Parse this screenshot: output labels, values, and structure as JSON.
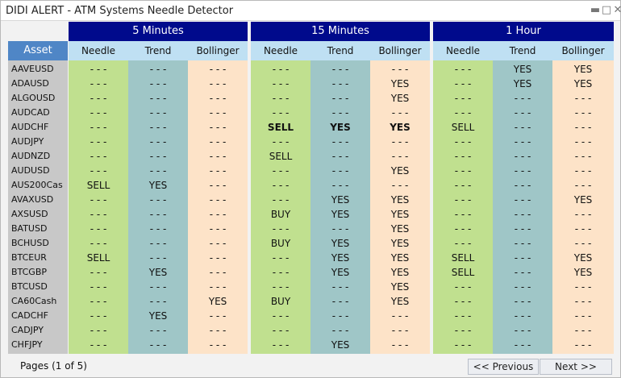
{
  "window": {
    "title": "DIDI ALERT - ATM Systems Needle Detector"
  },
  "groups": [
    "5 Minutes",
    "15 Minutes",
    "1 Hour"
  ],
  "subheaders": {
    "asset": "Asset",
    "needle": "Needle",
    "trend": "Trend",
    "bollinger": "Bollinger"
  },
  "colors": {
    "group_header": "#000a8c",
    "asset_header": "#4f86c6",
    "sub_header": "#bfe0f3",
    "needle": "#c0e08f",
    "trend": "#9fc6c7",
    "bollinger": "#fde3c8",
    "asset_col": "#c8c8c8"
  },
  "assets": [
    "AAVEUSD",
    "ADAUSD",
    "ALGOUSD",
    "AUDCAD",
    "AUDCHF",
    "AUDJPY",
    "AUDNZD",
    "AUDUSD",
    "AUS200Cas",
    "AVAXUSD",
    "AXSUSD",
    "BATUSD",
    "BCHUSD",
    "BTCEUR",
    "BTCGBP",
    "BTCUSD",
    "CA60Cash",
    "CADCHF",
    "CADJPY",
    "CHFJPY"
  ],
  "rows": [
    [
      "- - -",
      "- - -",
      "- - -",
      "- - -",
      "- - -",
      "- - -",
      "- - -",
      "YES",
      "YES"
    ],
    [
      "- - -",
      "- - -",
      "- - -",
      "- - -",
      "- - -",
      "YES",
      "- - -",
      "YES",
      "YES"
    ],
    [
      "- - -",
      "- - -",
      "- - -",
      "- - -",
      "- - -",
      "YES",
      "- - -",
      "- - -",
      "- - -"
    ],
    [
      "- - -",
      "- - -",
      "- - -",
      "- - -",
      "- - -",
      "- - -",
      "- - -",
      "- - -",
      "- - -"
    ],
    [
      "- - -",
      "- - -",
      "- - -",
      "SELL",
      "YES",
      "YES",
      "SELL",
      "- - -",
      "- - -"
    ],
    [
      "- - -",
      "- - -",
      "- - -",
      "- - -",
      "- - -",
      "- - -",
      "- - -",
      "- - -",
      "- - -"
    ],
    [
      "- - -",
      "- - -",
      "- - -",
      "SELL",
      "- - -",
      "- - -",
      "- - -",
      "- - -",
      "- - -"
    ],
    [
      "- - -",
      "- - -",
      "- - -",
      "- - -",
      "- - -",
      "YES",
      "- - -",
      "- - -",
      "- - -"
    ],
    [
      "SELL",
      "YES",
      "- - -",
      "- - -",
      "- - -",
      "- - -",
      "- - -",
      "- - -",
      "- - -"
    ],
    [
      "- - -",
      "- - -",
      "- - -",
      "- - -",
      "YES",
      "YES",
      "- - -",
      "- - -",
      "YES"
    ],
    [
      "- - -",
      "- - -",
      "- - -",
      "BUY",
      "YES",
      "YES",
      "- - -",
      "- - -",
      "- - -"
    ],
    [
      "- - -",
      "- - -",
      "- - -",
      "- - -",
      "- - -",
      "YES",
      "- - -",
      "- - -",
      "- - -"
    ],
    [
      "- - -",
      "- - -",
      "- - -",
      "BUY",
      "YES",
      "YES",
      "- - -",
      "- - -",
      "- - -"
    ],
    [
      "SELL",
      "- - -",
      "- - -",
      "- - -",
      "YES",
      "YES",
      "SELL",
      "- - -",
      "YES"
    ],
    [
      "- - -",
      "YES",
      "- - -",
      "- - -",
      "YES",
      "YES",
      "SELL",
      "- - -",
      "YES"
    ],
    [
      "- - -",
      "- - -",
      "- - -",
      "- - -",
      "- - -",
      "YES",
      "- - -",
      "- - -",
      "- - -"
    ],
    [
      "- - -",
      "- - -",
      "YES",
      "BUY",
      "- - -",
      "YES",
      "- - -",
      "- - -",
      "- - -"
    ],
    [
      "- - -",
      "YES",
      "- - -",
      "- - -",
      "- - -",
      "- - -",
      "- - -",
      "- - -",
      "- - -"
    ],
    [
      "- - -",
      "- - -",
      "- - -",
      "- - -",
      "- - -",
      "- - -",
      "- - -",
      "- - -",
      "- - -"
    ],
    [
      "- - -",
      "- - -",
      "- - -",
      "- - -",
      "YES",
      "- - -",
      "- - -",
      "- - -",
      "- - -"
    ]
  ],
  "bold_cells": [
    [
      4,
      3
    ],
    [
      4,
      4
    ],
    [
      4,
      5
    ]
  ],
  "footer": {
    "pages": "Pages (1 of 5)",
    "previous": "<< Previous",
    "next": "Next  >>"
  }
}
